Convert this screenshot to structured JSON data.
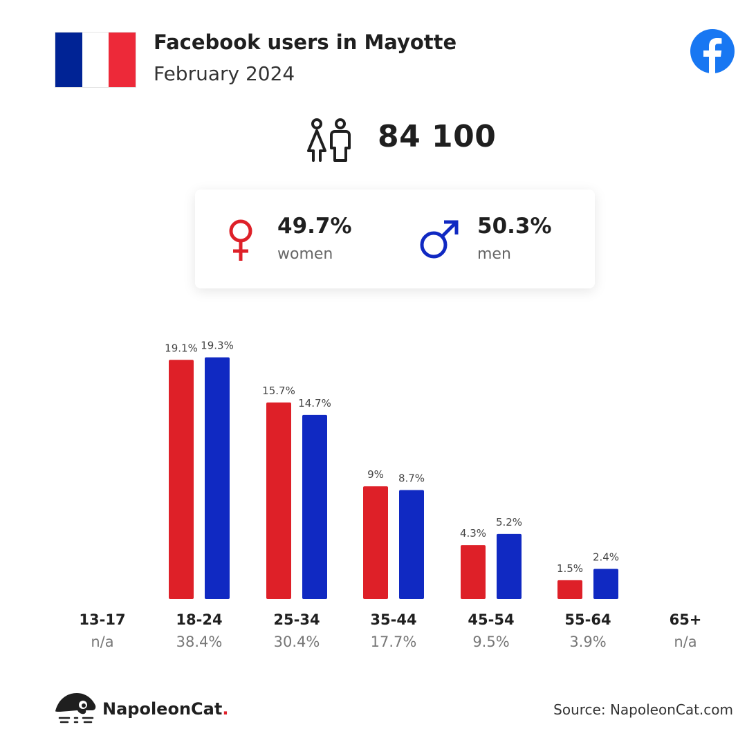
{
  "header": {
    "title": "Facebook users in Mayotte",
    "subtitle": "February 2024",
    "flag_colors": [
      "#002395",
      "#ffffff",
      "#ed2939"
    ],
    "flag_icon": "france-flag-icon",
    "platform_icon": "facebook-logo-icon"
  },
  "total": {
    "value": "84 100",
    "icon": "users-icon"
  },
  "gender": {
    "women": {
      "percent": "49.7%",
      "label": "women",
      "icon": "female-symbol-icon",
      "color": "#de2028"
    },
    "men": {
      "percent": "50.3%",
      "label": "men",
      "icon": "male-symbol-icon",
      "color": "#1029c2"
    }
  },
  "age_groups": [
    {
      "age": "13-17",
      "share": "n/a"
    },
    {
      "age": "18-24",
      "share": "38.4%"
    },
    {
      "age": "25-34",
      "share": "30.4%"
    },
    {
      "age": "35-44",
      "share": "17.7%"
    },
    {
      "age": "45-54",
      "share": "9.5%"
    },
    {
      "age": "55-64",
      "share": "3.9%"
    },
    {
      "age": "65+",
      "share": "n/a"
    }
  ],
  "chart_data": {
    "type": "bar",
    "categories": [
      "13-17",
      "18-24",
      "25-34",
      "35-44",
      "45-54",
      "55-64",
      "65+"
    ],
    "series": [
      {
        "name": "women",
        "color": "#de2028",
        "values": [
          null,
          19.1,
          15.7,
          9,
          4.3,
          1.5,
          null
        ],
        "labels": [
          "",
          "19.1%",
          "15.7%",
          "9%",
          "4.3%",
          "1.5%",
          ""
        ]
      },
      {
        "name": "men",
        "color": "#1029c2",
        "values": [
          null,
          19.3,
          14.7,
          8.7,
          5.2,
          2.4,
          null
        ],
        "labels": [
          "",
          "19.3%",
          "14.7%",
          "8.7%",
          "5.2%",
          "2.4%",
          ""
        ]
      }
    ],
    "ylim": [
      0,
      20
    ],
    "grid": false,
    "legend": "none"
  },
  "footer": {
    "brand_name": "NapoleonCat",
    "brand_dot": ".",
    "brand_icon": "napoleoncat-logo-icon",
    "source": "Source: NapoleonCat.com"
  }
}
